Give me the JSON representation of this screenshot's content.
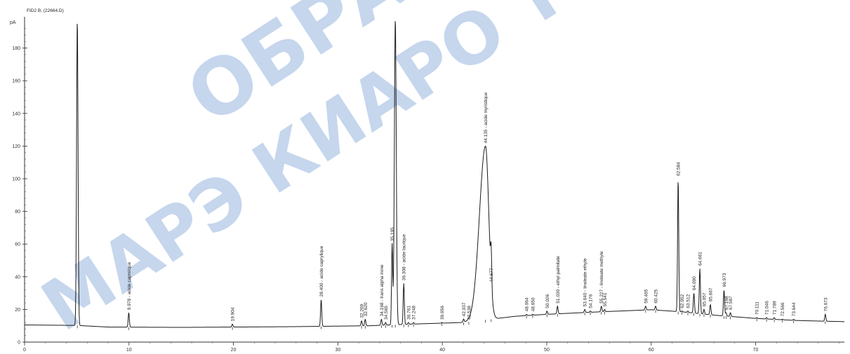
{
  "header": "FID2 B, (22664.D)",
  "watermark": {
    "line1": "ОБРАЗЕЦ",
    "line2": "МАРЭ КИАРО ТЕК"
  },
  "colors": {
    "trace": "#1a1a1a",
    "axis": "#333333",
    "watermark": "#3f78c4"
  },
  "chart_data": {
    "type": "line",
    "title": "",
    "xlabel": "",
    "ylabel": "pA",
    "xlim": [
      0,
      78.5
    ],
    "ylim": [
      -2,
      200
    ],
    "x_ticks": [
      0,
      10,
      20,
      30,
      40,
      50,
      60,
      70
    ],
    "x_tick_labels": [
      "0",
      "10",
      "20",
      "30",
      "40",
      "50",
      "60",
      "70"
    ],
    "y_ticks": [
      0,
      20,
      40,
      60,
      80,
      100,
      120,
      140,
      160,
      180
    ],
    "y_tick_labels": [
      "0",
      "20",
      "40",
      "60",
      "80",
      "100",
      "120",
      "140",
      "160",
      "180"
    ],
    "y_unit_label": "pA",
    "grid": false,
    "baseline": [
      [
        0,
        10.5
      ],
      [
        5,
        10.2
      ],
      [
        8,
        9.2
      ],
      [
        15,
        9.0
      ],
      [
        25,
        9.4
      ],
      [
        33,
        10
      ],
      [
        35,
        10.5
      ],
      [
        38,
        11.2
      ],
      [
        42,
        12
      ],
      [
        44,
        13.5
      ],
      [
        47,
        15.8
      ],
      [
        50,
        17
      ],
      [
        55,
        18.5
      ],
      [
        60,
        19.8
      ],
      [
        63,
        18.5
      ],
      [
        66,
        16.5
      ],
      [
        70,
        14.5
      ],
      [
        74,
        13.2
      ],
      [
        78.5,
        12.5
      ]
    ],
    "peaks": [
      {
        "rt": 5.05,
        "height": 198,
        "label": ""
      },
      {
        "rt": 9.978,
        "height": 18,
        "label": "9.978 - acide caproïque"
      },
      {
        "rt": 19.904,
        "height": 11,
        "label": "19.904"
      },
      {
        "rt": 28.4,
        "height": 26,
        "label": "28.400 - acide caprylique"
      },
      {
        "rt": 32.269,
        "height": 13,
        "label": "32.269"
      },
      {
        "rt": 32.62,
        "height": 14,
        "label": "32.620"
      },
      {
        "rt": 34.168,
        "height": 14,
        "label": "34.168 - trans alpha irone"
      },
      {
        "rt": 34.565,
        "height": 12,
        "label": "34.565"
      },
      {
        "rt": 35.195,
        "height": 60,
        "label": "35.195"
      },
      {
        "rt": 35.5,
        "height": 198,
        "label": ""
      },
      {
        "rt": 36.308,
        "height": 36,
        "label": "36.308 - acide laurique"
      },
      {
        "rt": 36.761,
        "height": 12,
        "label": "36.761"
      },
      {
        "rt": 37.248,
        "height": 12,
        "label": "37.248"
      },
      {
        "rt": 39.956,
        "height": 12,
        "label": "39.956"
      },
      {
        "rt": 42.037,
        "height": 14,
        "label": "42.037"
      },
      {
        "rt": 42.538,
        "height": 12,
        "label": "42.538"
      },
      {
        "rt": 44.135,
        "height": 120,
        "label": "44.135 - acide myristique"
      },
      {
        "rt": 44.677,
        "height": 35,
        "label": "44.677"
      },
      {
        "rt": 48.064,
        "height": 17,
        "label": "48.064"
      },
      {
        "rt": 48.65,
        "height": 17,
        "label": "48.650"
      },
      {
        "rt": 50.026,
        "height": 19,
        "label": "50.026"
      },
      {
        "rt": 51.03,
        "height": 22,
        "label": "51.030 - ethyl palmitate"
      },
      {
        "rt": 53.64,
        "height": 20,
        "label": "53.640 - linoleate ethyle"
      },
      {
        "rt": 54.176,
        "height": 19,
        "label": "54.176"
      },
      {
        "rt": 55.227,
        "height": 22,
        "label": "55.227 - linoleate methyle"
      },
      {
        "rt": 55.541,
        "height": 20,
        "label": "55.541"
      },
      {
        "rt": 59.465,
        "height": 22,
        "label": "59.465"
      },
      {
        "rt": 60.425,
        "height": 22,
        "label": "60.425"
      },
      {
        "rt": 62.584,
        "height": 100,
        "label": "62.584"
      },
      {
        "rt": 62.952,
        "height": 19,
        "label": "62.952"
      },
      {
        "rt": 63.512,
        "height": 19,
        "label": "63.512"
      },
      {
        "rt": 64.09,
        "height": 30,
        "label": "64.090"
      },
      {
        "rt": 64.661,
        "height": 45,
        "label": "64.661"
      },
      {
        "rt": 65.057,
        "height": 20,
        "label": "65.057"
      },
      {
        "rt": 65.667,
        "height": 23,
        "label": "65.667"
      },
      {
        "rt": 66.973,
        "height": 32,
        "label": "66.973"
      },
      {
        "rt": 67.168,
        "height": 18,
        "label": "67.168"
      },
      {
        "rt": 67.587,
        "height": 18,
        "label": "67.587"
      },
      {
        "rt": 70.111,
        "height": 15,
        "label": "70.111"
      },
      {
        "rt": 71.046,
        "height": 15,
        "label": "71.046"
      },
      {
        "rt": 71.789,
        "height": 15,
        "label": "71.789"
      },
      {
        "rt": 72.566,
        "height": 14,
        "label": "72.566"
      },
      {
        "rt": 73.644,
        "height": 14,
        "label": "73.644"
      },
      {
        "rt": 76.673,
        "height": 17,
        "label": "76.673"
      }
    ]
  }
}
